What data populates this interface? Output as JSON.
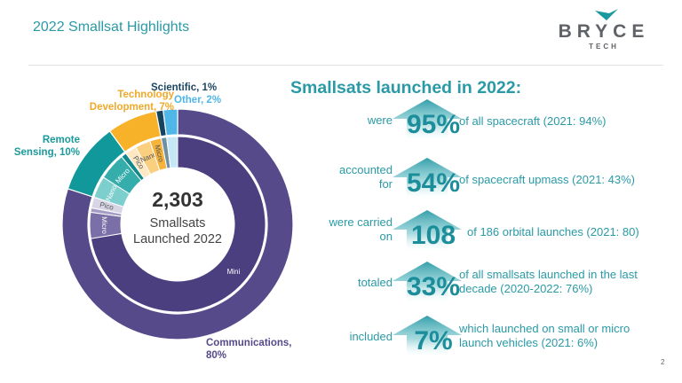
{
  "header": {
    "title": "2022 Smallsat Highlights",
    "logo_word": "BRYCE",
    "logo_sub": "TECH"
  },
  "chart_data": {
    "type": "pie",
    "subtype": "sunburst-donut",
    "center_label": {
      "value": "2,303",
      "line1": "Smallsats",
      "line2": "Launched 2022"
    },
    "start": "top",
    "direction": "clockwise",
    "categories": [
      {
        "name": "Communications",
        "label": "Communications, 80%",
        "label_line1": "Communications,",
        "label_line2": "80%",
        "percent": 80,
        "color": "#574a8a",
        "label_color": "#574a8a",
        "sub": [
          {
            "name": "Mini",
            "share": 0.905,
            "color": "#4b3f80",
            "label": "Mini"
          },
          {
            "name": "Micro",
            "share": 0.06,
            "color": "#7a6fa6",
            "label": "Micro"
          },
          {
            "name": "Nano",
            "share": 0.01,
            "color": "#a49cc4",
            "label": ""
          },
          {
            "name": "Pico",
            "share": 0.025,
            "color": "#d8d5e6",
            "label": "Pico"
          }
        ]
      },
      {
        "name": "Remote Sensing",
        "label": "Remote Sensing, 10%",
        "label_line1": "Remote",
        "label_line2": "Sensing, 10%",
        "percent": 10,
        "color": "#11989a",
        "label_color": "#1a9a9c",
        "sub": [
          {
            "name": "Nano",
            "share": 0.4,
            "color": "#7ccfcc",
            "label": "Nano"
          },
          {
            "name": "Micro",
            "share": 0.5,
            "color": "#35adab",
            "label": "Micro"
          },
          {
            "name": "Pico",
            "share": 0.1,
            "color": "#11898a",
            "label": ""
          }
        ]
      },
      {
        "name": "Technology Development",
        "label": "Technology Development, 7%",
        "label_line1": "Technology",
        "label_line2": "Development, 7%",
        "percent": 7,
        "color": "#f7b22a",
        "label_color": "#f0a92a",
        "sub": [
          {
            "name": "Pico",
            "share": 0.3,
            "color": "#fde8c3",
            "label": "Pico"
          },
          {
            "name": "Nano",
            "share": 0.4,
            "color": "#fbcf80",
            "label": "Nano"
          },
          {
            "name": "Micro",
            "share": 0.3,
            "color": "#f5b33c",
            "label": "Micro"
          }
        ]
      },
      {
        "name": "Scientific",
        "label": "Scientific, 1%",
        "percent": 1,
        "color": "#16435e",
        "label_color": "#1d4560",
        "sub": [
          {
            "name": "Scientific",
            "share": 1.0,
            "color": "#6f8fa3",
            "label": ""
          }
        ]
      },
      {
        "name": "Other",
        "label": "Other, 2%",
        "percent": 2,
        "color": "#4fb6e8",
        "label_color": "#4fb6e8",
        "sub": [
          {
            "name": "Other",
            "share": 1.0,
            "color": "#c6e7f6",
            "label": ""
          }
        ]
      }
    ]
  },
  "highlights": {
    "headline": "Smallsats launched in 2022:",
    "stats": [
      {
        "lead1": "were",
        "lead2": "",
        "value": "95%",
        "desc1": "of all spacecraft  (2021: 94%)",
        "desc2": ""
      },
      {
        "lead1": "accounted",
        "lead2": "for",
        "value": "54%",
        "desc1": "of spacecraft upmass (2021: 43%)",
        "desc2": ""
      },
      {
        "lead1": "were carried",
        "lead2": "on",
        "value": "108",
        "desc1": "of 186 orbital launches (2021: 80)",
        "desc2": ""
      },
      {
        "lead1": "totaled",
        "lead2": "",
        "value": "33%",
        "desc1": "of all smallsats launched in the last",
        "desc2": "decade (2020-2022: 76%)"
      },
      {
        "lead1": "included",
        "lead2": "",
        "value": "7%",
        "desc1": "which launched on small or micro",
        "desc2": "launch vehicles (2021: 6%)"
      }
    ],
    "arrow_color": "#2a9aa6"
  },
  "footer": {
    "page_number": "2"
  }
}
